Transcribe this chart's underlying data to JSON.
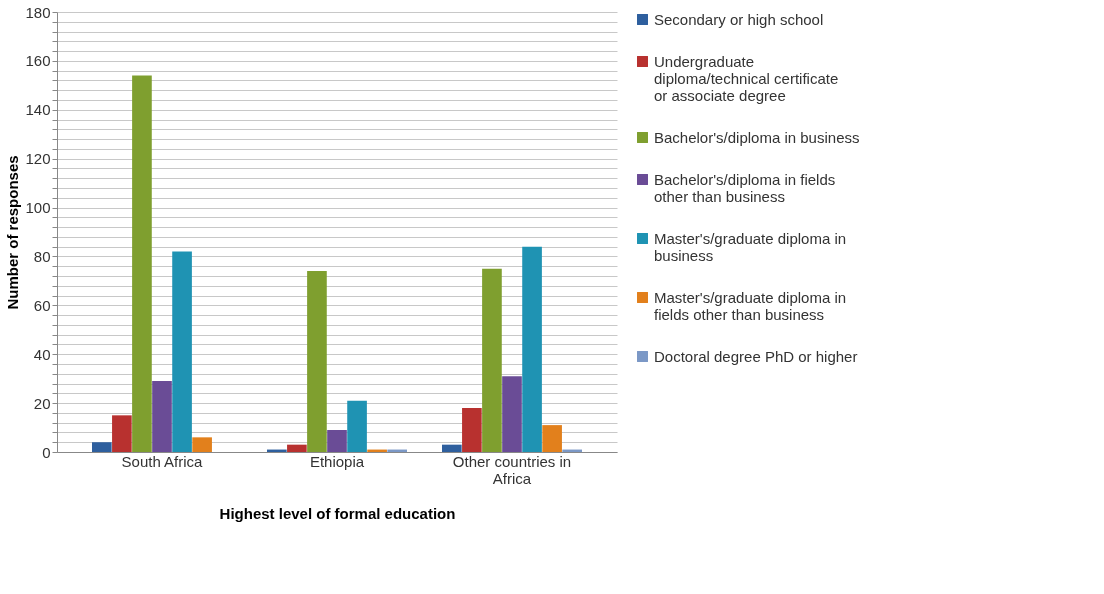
{
  "chart_data": {
    "type": "bar",
    "xlabel": "Highest level of formal education",
    "ylabel": "Number of responses",
    "categories": [
      "South Africa",
      "Ethiopia",
      "Other countries in Africa"
    ],
    "series": [
      {
        "name": "Secondary or high school",
        "color": "#2e5f9e",
        "values": [
          4,
          1,
          3
        ]
      },
      {
        "name": "Undergraduate diploma/technical certificate or associate degree",
        "color": "#b8312f",
        "values": [
          15,
          3,
          18
        ]
      },
      {
        "name": "Bachelor's/diploma in business",
        "color": "#7f9f2f",
        "values": [
          154,
          74,
          75
        ]
      },
      {
        "name": "Bachelor's/diploma in fields other than business",
        "color": "#6a4c96",
        "values": [
          29,
          9,
          31
        ]
      },
      {
        "name": "Master's/graduate diploma in business",
        "color": "#1f93b3",
        "values": [
          82,
          21,
          84
        ]
      },
      {
        "name": "Master's/graduate diploma in fields other than business",
        "color": "#e2801c",
        "values": [
          6,
          1,
          11
        ]
      },
      {
        "name": "Doctoral degree PhD or higher",
        "color": "#7b98c6",
        "values": [
          0,
          1,
          1
        ]
      }
    ],
    "ylim": [
      0,
      180
    ],
    "yticks": [
      0,
      {
        "value": 4,
        "label": null
      },
      {
        "value": 8,
        "label": null
      },
      {
        "value": 12,
        "label": null
      },
      {
        "value": 16,
        "label": null
      },
      20,
      {
        "value": 24,
        "label": null
      },
      {
        "value": 28,
        "label": null
      },
      {
        "value": 32,
        "label": null
      },
      {
        "value": 36,
        "label": null
      },
      40,
      {
        "value": 44,
        "label": null
      },
      {
        "value": 48,
        "label": null
      },
      {
        "value": 52,
        "label": null
      },
      {
        "value": 56,
        "label": null
      },
      60,
      {
        "value": 64,
        "label": null
      },
      {
        "value": 68,
        "label": null
      },
      {
        "value": 72,
        "label": null
      },
      {
        "value": 76,
        "label": null
      },
      80,
      {
        "value": 84,
        "label": null
      },
      {
        "value": 88,
        "label": null
      },
      {
        "value": 92,
        "label": null
      },
      {
        "value": 96,
        "label": null
      },
      100,
      {
        "value": 104,
        "label": null
      },
      {
        "value": 108,
        "label": null
      },
      {
        "value": 112,
        "label": null
      },
      {
        "value": 116,
        "label": null
      },
      120,
      {
        "value": 124,
        "label": null
      },
      {
        "value": 128,
        "label": null
      },
      {
        "value": 132,
        "label": null
      },
      {
        "value": 136,
        "label": null
      },
      140,
      {
        "value": 144,
        "label": null
      },
      {
        "value": 148,
        "label": null
      },
      {
        "value": 152,
        "label": null
      },
      {
        "value": 156,
        "label": null
      },
      160,
      {
        "value": 164,
        "label": null
      },
      {
        "value": 168,
        "label": null
      },
      {
        "value": 172,
        "label": null
      },
      {
        "value": 176,
        "label": null
      },
      180
    ],
    "grid": "y",
    "legend": "right"
  }
}
